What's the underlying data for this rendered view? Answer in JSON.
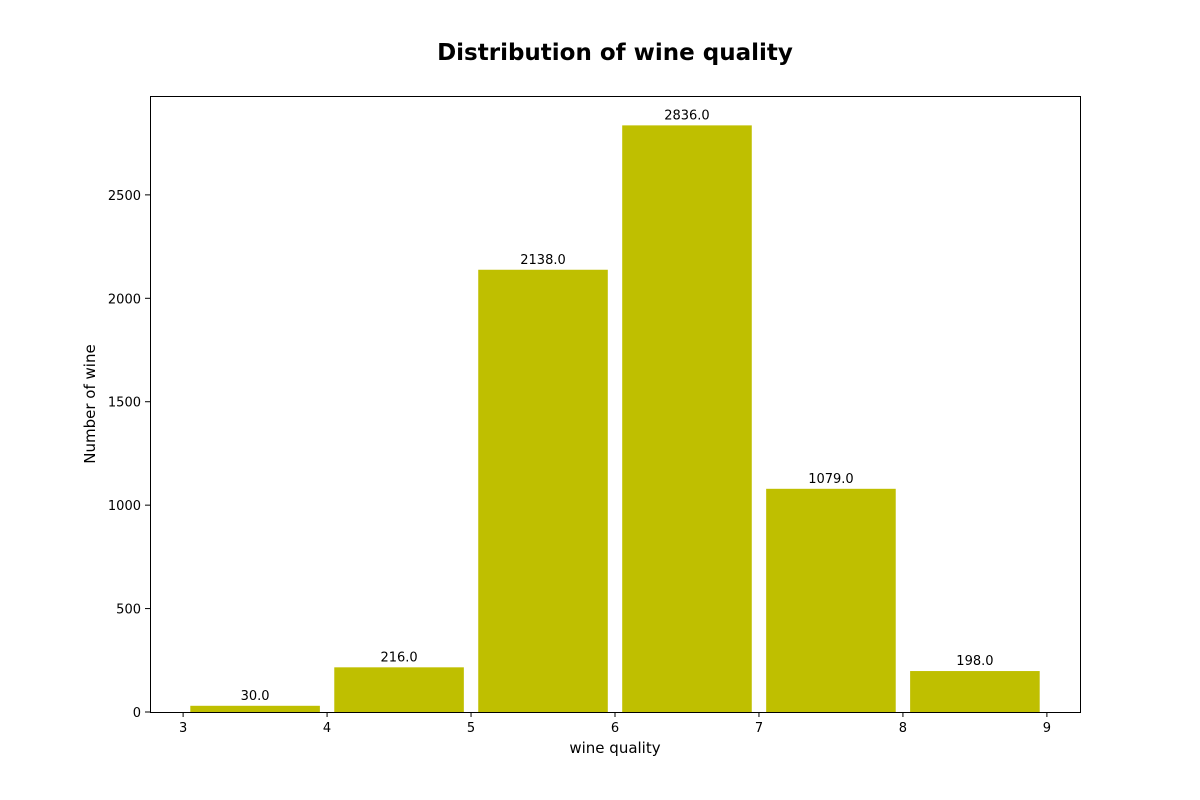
{
  "chart_data": {
    "type": "bar",
    "title": "Distribution of wine quality",
    "xlabel": "wine quality",
    "ylabel": "Number of wine",
    "bins": [
      {
        "start": 3,
        "end": 4,
        "value": 30.0,
        "label": "30.0"
      },
      {
        "start": 4,
        "end": 5,
        "value": 216.0,
        "label": "216.0"
      },
      {
        "start": 5,
        "end": 6,
        "value": 2138.0,
        "label": "2138.0"
      },
      {
        "start": 6,
        "end": 7,
        "value": 2836.0,
        "label": "2836.0"
      },
      {
        "start": 7,
        "end": 8,
        "value": 1079.0,
        "label": "1079.0"
      },
      {
        "start": 8,
        "end": 9,
        "value": 198.0,
        "label": "198.0"
      }
    ],
    "xlim": [
      2.77,
      9.23
    ],
    "ylim": [
      0,
      2978
    ],
    "xticks": [
      {
        "value": 3,
        "label": "3"
      },
      {
        "value": 4,
        "label": "4"
      },
      {
        "value": 5,
        "label": "5"
      },
      {
        "value": 6,
        "label": "6"
      },
      {
        "value": 7,
        "label": "7"
      },
      {
        "value": 8,
        "label": "8"
      },
      {
        "value": 9,
        "label": "9"
      }
    ],
    "yticks": [
      {
        "value": 0,
        "label": "0"
      },
      {
        "value": 500,
        "label": "500"
      },
      {
        "value": 1000,
        "label": "1000"
      },
      {
        "value": 1500,
        "label": "1500"
      },
      {
        "value": 2000,
        "label": "2000"
      },
      {
        "value": 2500,
        "label": "2500"
      }
    ],
    "bar_color": "#bfbf00",
    "grid": false,
    "legend": "none"
  }
}
